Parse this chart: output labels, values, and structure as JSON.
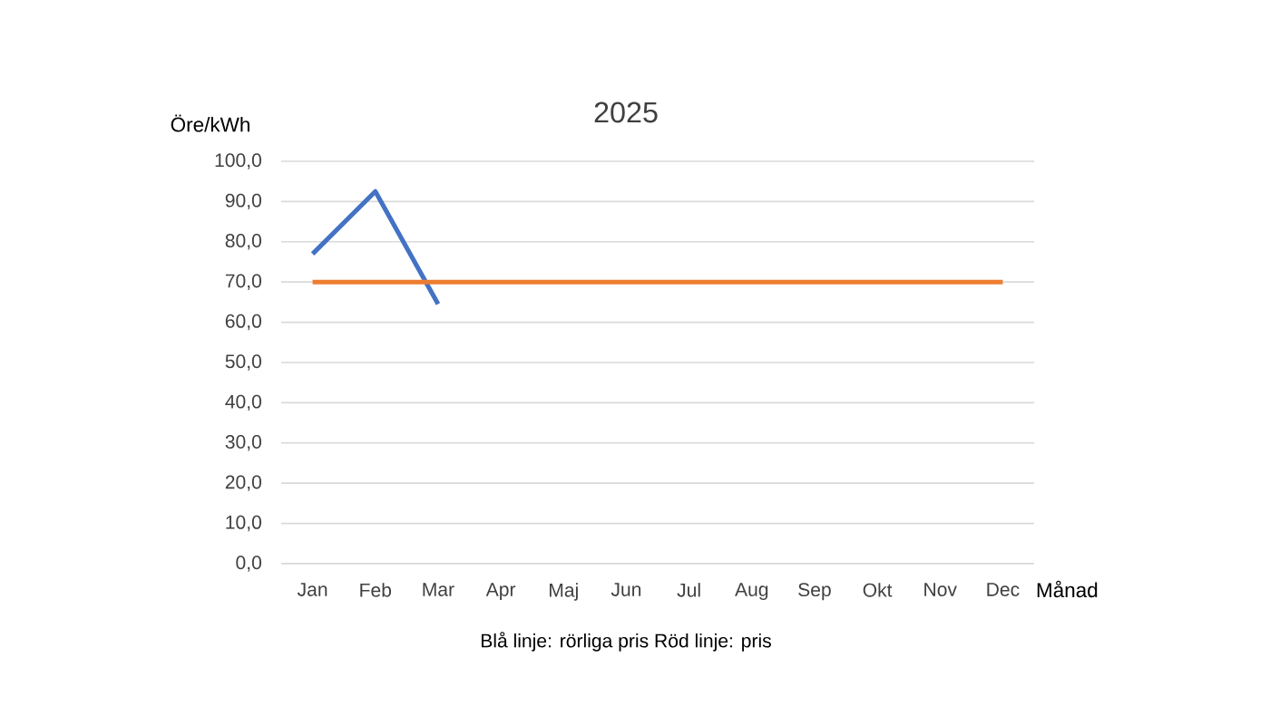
{
  "chart_data": {
    "type": "line",
    "title": "2025",
    "xlabel": "Månad",
    "ylabel": "Öre/kWh",
    "annotations": [
      "Blå linje: rörliga pris   Röd linje: pris"
    ],
    "categories": [
      "Jan",
      "Feb",
      "Mar",
      "Apr",
      "Maj",
      "Jun",
      "Jul",
      "Aug",
      "Sep",
      "Okt",
      "Nov",
      "Dec"
    ],
    "series": [
      {
        "color": "#4472c4",
        "values": [
          77,
          92.5,
          64.5,
          null,
          null,
          null,
          null,
          null,
          null,
          null,
          null,
          null
        ]
      },
      {
        "color": "#ed7d31",
        "values": [
          70,
          70,
          70,
          70,
          70,
          70,
          70,
          70,
          70,
          70,
          70,
          70
        ]
      }
    ],
    "ylim": [
      0,
      100
    ],
    "yticks": [
      {
        "value": 0,
        "label": "0,0"
      },
      {
        "value": 10,
        "label": "10,0"
      },
      {
        "value": 20,
        "label": "20,0"
      },
      {
        "value": 30,
        "label": "30,0"
      },
      {
        "value": 40,
        "label": "40,0"
      },
      {
        "value": 50,
        "label": "50,0"
      },
      {
        "value": 60,
        "label": "60,0"
      },
      {
        "value": 70,
        "label": "70,0"
      },
      {
        "value": 80,
        "label": "80,0"
      },
      {
        "value": 90,
        "label": "90,0"
      },
      {
        "value": 100,
        "label": "100,0"
      }
    ],
    "grid": true
  }
}
